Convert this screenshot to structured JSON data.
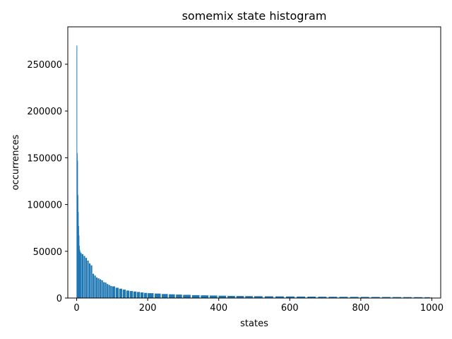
{
  "chart_data": {
    "type": "bar",
    "title": "somemix state histogram",
    "xlabel": "states",
    "ylabel": "occurrences",
    "xlim": [
      -25,
      1025
    ],
    "ylim": [
      0,
      290000
    ],
    "xticks": [
      0,
      200,
      400,
      600,
      800,
      1000
    ],
    "yticks": [
      0,
      50000,
      100000,
      150000,
      200000,
      250000
    ],
    "grid": false,
    "legend": "none",
    "bar_color": "#1f77b4",
    "series": [
      {
        "x": [
          0,
          1,
          2,
          3,
          4,
          5,
          6,
          7,
          8,
          9,
          10,
          12,
          15,
          20,
          25,
          30,
          35,
          40,
          45,
          50,
          55,
          60,
          65,
          70,
          75,
          80,
          85,
          90,
          95,
          100,
          110,
          120,
          130,
          140,
          150,
          160,
          170,
          180,
          190,
          200,
          220,
          240,
          260,
          280,
          300,
          325,
          350,
          375,
          400,
          425,
          450,
          475,
          500,
          530,
          560,
          590,
          620,
          650,
          680,
          710,
          740,
          770,
          800,
          830,
          860,
          890,
          920,
          950,
          980,
          998
        ],
        "values": [
          270000,
          155000,
          147000,
          110000,
          92000,
          77000,
          67000,
          56000,
          52000,
          50000,
          49000,
          48000,
          47000,
          45000,
          43000,
          40000,
          37000,
          35000,
          26000,
          24000,
          22000,
          21000,
          20000,
          19000,
          17000,
          16500,
          15000,
          14000,
          13000,
          12500,
          11000,
          10000,
          9000,
          8000,
          7500,
          7000,
          6500,
          6000,
          5500,
          5200,
          4800,
          4300,
          4000,
          3700,
          3400,
          3100,
          2900,
          2700,
          2500,
          2300,
          2200,
          2100,
          2000,
          1900,
          1800,
          1700,
          1600,
          1500,
          1400,
          1350,
          1300,
          1250,
          1200,
          1150,
          1100,
          1050,
          1000,
          950,
          900,
          850
        ]
      }
    ]
  }
}
